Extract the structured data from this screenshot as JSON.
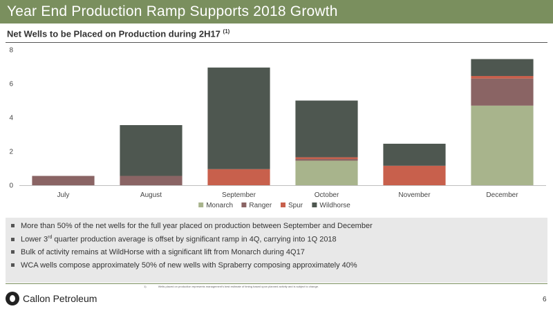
{
  "header": {
    "title": "Year End Production Ramp Supports 2018 Growth"
  },
  "subtitle": {
    "text": "Net Wells to be Placed on Production during 2H17",
    "footnote_ref": "(1)"
  },
  "colors": {
    "header_bg": "#7a8f5e",
    "Monarch": "#a8b48c",
    "Ranger": "#8a6464",
    "Spur": "#c8604c",
    "Wildhorse": "#4e5750"
  },
  "chart_data": {
    "type": "bar",
    "stacked": true,
    "categories": [
      "July",
      "August",
      "September",
      "October",
      "November",
      "December"
    ],
    "series": [
      {
        "name": "Monarch",
        "values": [
          0,
          0,
          0,
          1.45,
          0,
          4.7
        ]
      },
      {
        "name": "Ranger",
        "values": [
          0.55,
          0.55,
          0,
          0.1,
          0,
          1.6
        ]
      },
      {
        "name": "Spur",
        "values": [
          0,
          0,
          0.95,
          0.1,
          1.15,
          0.15
        ]
      },
      {
        "name": "Wildhorse",
        "values": [
          0,
          3.0,
          6.0,
          3.35,
          1.3,
          1.0
        ]
      }
    ],
    "y_ticks": [
      "0",
      "2",
      "4",
      "6",
      "8"
    ],
    "ylim": [
      0,
      8
    ],
    "legend_position": "bottom",
    "grid": false
  },
  "bullets": [
    {
      "text": "More than 50% of the net wells for the full year placed on production between September and December"
    },
    {
      "pre": "Lower 3",
      "sup": "rd",
      "post": " quarter production average is offset by significant ramp in 4Q, carrying into 1Q 2018"
    },
    {
      "text": "Bulk of activity remains at WildHorse with a significant lift from Monarch during 4Q17"
    },
    {
      "text": "WCA wells compose approximately 50% of new wells with Spraberry composing approximately 40%"
    }
  ],
  "footnote": {
    "number": "1)",
    "text": "Wells placed on production represents management's best estimate of timing based upon planned activity and is subject to change."
  },
  "logo": {
    "text": "Callon Petroleum"
  },
  "page_number": "6"
}
